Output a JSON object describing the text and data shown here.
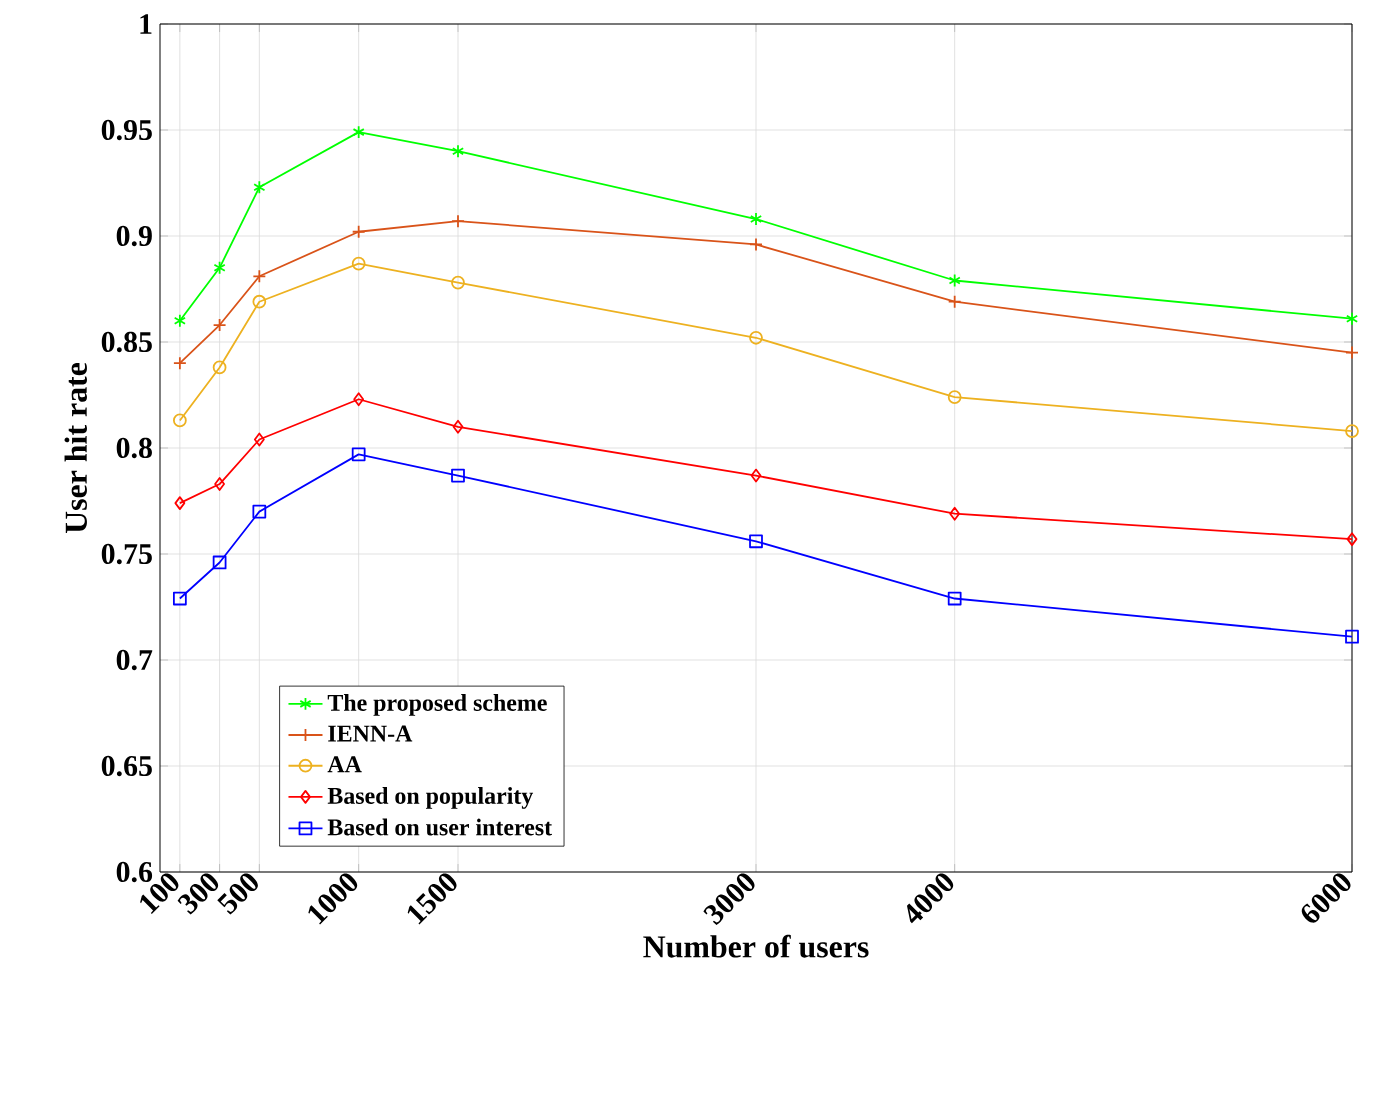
{
  "chart_data": {
    "type": "line",
    "xlabel": "Number of users",
    "ylabel": "User hit rate",
    "x": [
      100,
      300,
      500,
      1000,
      1500,
      3000,
      4000,
      6000
    ],
    "xlim": [
      0,
      6000
    ],
    "xticks": [
      100,
      300,
      500,
      1000,
      1500,
      3000,
      4000,
      6000
    ],
    "ylim": [
      0.6,
      1
    ],
    "yticks": [
      0.6,
      0.65,
      0.7,
      0.75,
      0.8,
      0.85,
      0.9,
      0.95,
      1
    ],
    "grid": true,
    "legend": "bottom left",
    "line_style": "solid",
    "series": [
      {
        "name": "The proposed scheme",
        "color": "#00ff00",
        "marker": "cross",
        "values": [
          0.86,
          0.885,
          0.923,
          0.949,
          0.94,
          0.908,
          0.879,
          0.861
        ]
      },
      {
        "name": "IENN-A",
        "color": "#d95319",
        "marker": "plus",
        "values": [
          0.84,
          0.858,
          0.881,
          0.902,
          0.907,
          0.896,
          0.869,
          0.845
        ]
      },
      {
        "name": "AA",
        "color": "#edb120",
        "marker": "circle",
        "values": [
          0.813,
          0.838,
          0.869,
          0.887,
          0.878,
          0.852,
          0.824,
          0.808
        ]
      },
      {
        "name": "Based on popularity",
        "color": "#ff0000",
        "marker": "diamond",
        "values": [
          0.774,
          0.783,
          0.804,
          0.823,
          0.81,
          0.787,
          0.769,
          0.757
        ]
      },
      {
        "name": "Based on user interest",
        "color": "#0000ff",
        "marker": "square",
        "values": [
          0.729,
          0.746,
          0.77,
          0.797,
          0.787,
          0.756,
          0.729,
          0.711
        ]
      }
    ]
  }
}
